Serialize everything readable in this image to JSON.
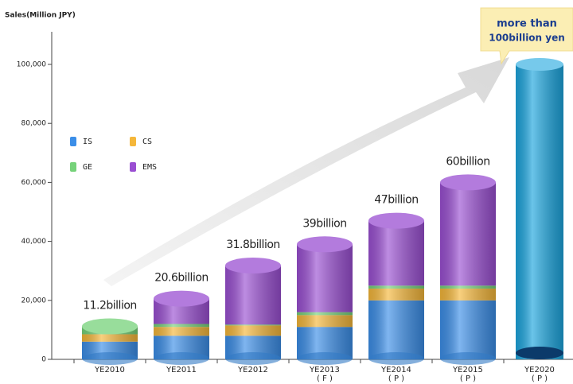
{
  "chart_data": {
    "type": "stacked-cylinder",
    "y_axis_label": "Sales(Million JPY)",
    "categories": [
      "YE2010",
      "YE2011",
      "YE2012",
      "YE2013\n( F )",
      "YE2014\n( P )",
      "YE2015\n( P )",
      "YE2020\n( P )"
    ],
    "series": [
      {
        "name": "IS",
        "color": "#3b8ee8",
        "values": [
          6000,
          8000,
          8000,
          11000,
          20000,
          20000,
          null
        ]
      },
      {
        "name": "CS",
        "color": "#f5b73a",
        "values": [
          2500,
          3000,
          3500,
          4000,
          4000,
          4000,
          null
        ]
      },
      {
        "name": "GE",
        "color": "#76d27a",
        "values": [
          2700,
          1000,
          300,
          1000,
          1000,
          1000,
          null
        ]
      },
      {
        "name": "EMS",
        "color": "#9a4fd2",
        "values": [
          0,
          8600,
          20000,
          23000,
          22000,
          35000,
          null
        ]
      }
    ],
    "totals": {
      "values": [
        11200,
        20600,
        31800,
        39000,
        47000,
        60000,
        null
      ],
      "value_labels": [
        "11.2billion",
        "20.6billion",
        "31.8billion",
        "39billion",
        "47billion",
        "60billion",
        null
      ]
    },
    "target": {
      "values": [
        null,
        null,
        null,
        null,
        null,
        null,
        100000
      ],
      "color": "#1ba5de"
    },
    "annotation": [
      "more than",
      "100billion yen"
    ],
    "ylim": [
      0,
      100000
    ],
    "yticks": [
      0,
      {
        "value": 20000,
        "label": "20,000"
      },
      {
        "value": 40000,
        "label": "40,000"
      },
      {
        "value": 60000,
        "label": "60,000"
      },
      {
        "value": 80000,
        "label": "80,000"
      },
      {
        "value": 100000,
        "label": "100,000"
      }
    ]
  }
}
